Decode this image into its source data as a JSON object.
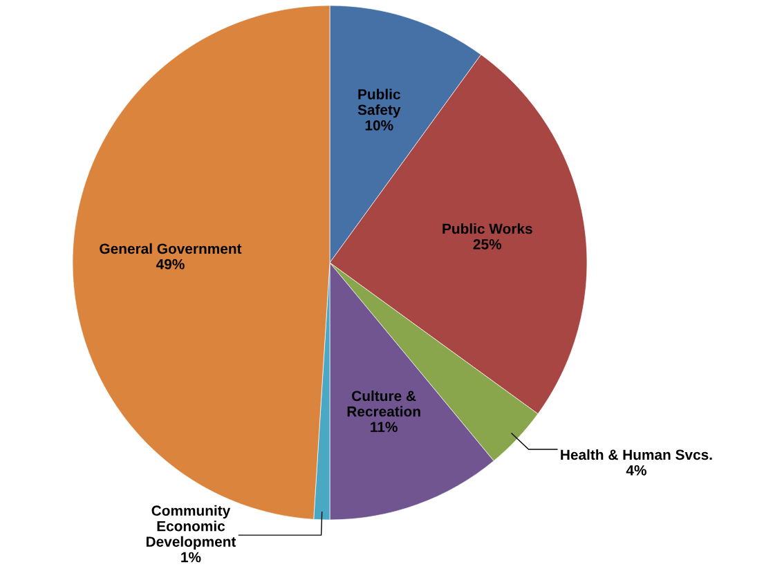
{
  "chart_data": {
    "type": "pie",
    "categories": [
      "Public\nSafety",
      "Public Works",
      "Health & Human Svcs.",
      "Culture &\nRecreation",
      "Community\nEconomic\nDevelopment",
      "General Government"
    ],
    "values": [
      10,
      25,
      4,
      11,
      1,
      49
    ],
    "value_labels": [
      "10%",
      "25%",
      "4%",
      "11%",
      "1%",
      "49%"
    ],
    "colors": [
      "#4571a7",
      "#a84644",
      "#8aa64c",
      "#705590",
      "#4aa8c4",
      "#db843d"
    ],
    "legend": false
  }
}
